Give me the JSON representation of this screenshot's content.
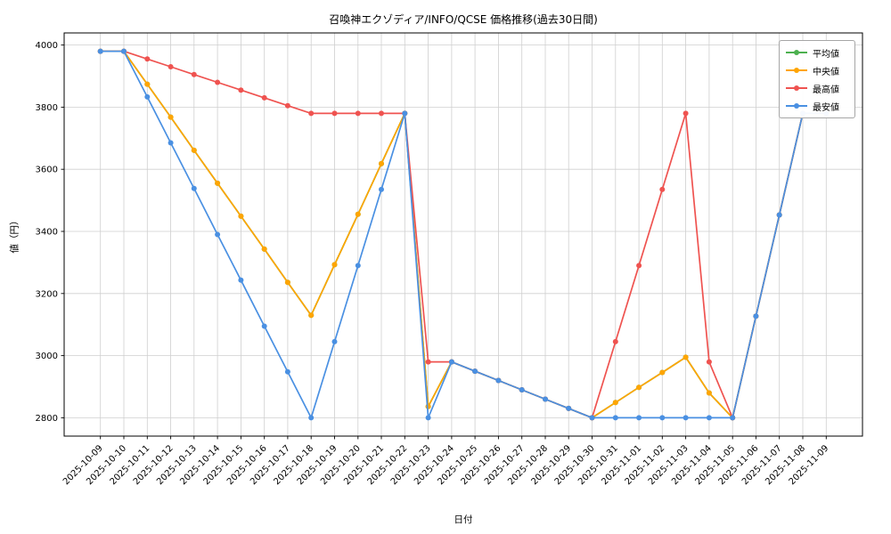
{
  "title": "召喚神エクゾディア/INFO/QCSE 価格推移(過去30日間)",
  "xlabel": "日付",
  "ylabel": "値（円）",
  "chart_data": {
    "type": "line",
    "x": [
      "2025-10-09",
      "2025-10-10",
      "2025-10-11",
      "2025-10-12",
      "2025-10-13",
      "2025-10-14",
      "2025-10-15",
      "2025-10-16",
      "2025-10-17",
      "2025-10-18",
      "2025-10-19",
      "2025-10-20",
      "2025-10-21",
      "2025-10-22",
      "2025-10-23",
      "2025-10-24",
      "2025-10-25",
      "2025-10-26",
      "2025-10-27",
      "2025-10-28",
      "2025-10-29",
      "2025-10-30",
      "2025-10-31",
      "2025-11-01",
      "2025-11-02",
      "2025-11-03",
      "2025-11-04",
      "2025-11-05",
      "2025-11-06",
      "2025-11-07",
      "2025-11-08",
      "2025-11-09"
    ],
    "series": [
      {
        "id": "average",
        "name": "平均値",
        "color": "#4cb04f",
        "values": [
          3980,
          3980,
          3874,
          3768,
          3661,
          3555,
          3449,
          3343,
          3236,
          3130,
          3293,
          3455,
          3618,
          3780,
          2836,
          2980,
          2950,
          2920,
          2890,
          2860,
          2830,
          2800,
          2849,
          2898,
          2946,
          2995,
          2880,
          2800,
          3127,
          3453,
          3780,
          3780
        ]
      },
      {
        "id": "median",
        "name": "中央値",
        "color": "#ffa502",
        "values": [
          3980,
          3980,
          3874,
          3768,
          3661,
          3555,
          3449,
          3343,
          3236,
          3130,
          3293,
          3455,
          3618,
          3780,
          2836,
          2980,
          2950,
          2920,
          2890,
          2860,
          2830,
          2800,
          2849,
          2898,
          2946,
          2995,
          2880,
          2800,
          3127,
          3453,
          3780,
          3780
        ]
      },
      {
        "id": "max",
        "name": "最高値",
        "color": "#ef5350",
        "values": [
          3980,
          3980,
          3955,
          3930,
          3905,
          3880,
          3855,
          3830,
          3805,
          3780,
          3780,
          3780,
          3780,
          3780,
          2980,
          2980,
          2950,
          2920,
          2890,
          2860,
          2830,
          2800,
          3045,
          3290,
          3535,
          3780,
          2980,
          2800,
          3127,
          3453,
          3780,
          3780
        ]
      },
      {
        "id": "min",
        "name": "最安値",
        "color": "#4a90e2",
        "values": [
          3980,
          3980,
          3833,
          3685,
          3538,
          3390,
          3243,
          3095,
          2948,
          2800,
          3045,
          3290,
          3535,
          3780,
          2800,
          2980,
          2950,
          2920,
          2890,
          2860,
          2830,
          2800,
          2800,
          2800,
          2800,
          2800,
          2800,
          2800,
          3127,
          3453,
          3780,
          3780
        ]
      }
    ],
    "yticks": [
      2800,
      3000,
      3200,
      3400,
      3600,
      3800,
      4000
    ],
    "ylim": [
      2741,
      4039
    ],
    "grid": true,
    "legend_position": "upper right"
  }
}
